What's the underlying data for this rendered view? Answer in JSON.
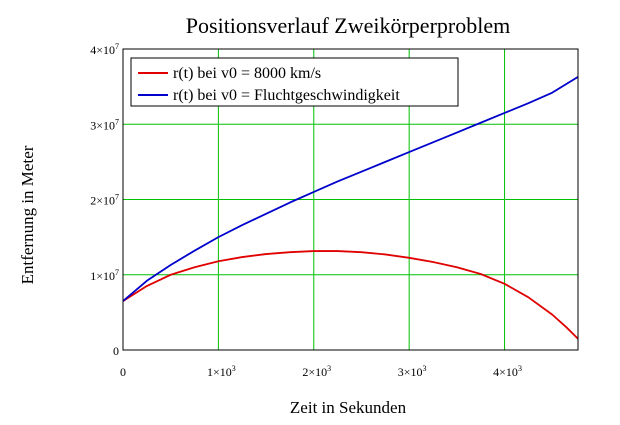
{
  "chart_data": {
    "type": "line",
    "title": "Positionsverlauf Zweikörperproblem",
    "xlabel": "Zeit in Sekunden",
    "ylabel": "Entfernung in Meter",
    "xlim": [
      0,
      4770
    ],
    "ylim": [
      0,
      40000000
    ],
    "grid": true,
    "grid_color": "#00c000",
    "legend_position": "top-left",
    "x_ticks": [
      {
        "value": 0,
        "mantissa": "0",
        "exponent": ""
      },
      {
        "value": 1000,
        "mantissa": "1×10",
        "exponent": "3"
      },
      {
        "value": 2000,
        "mantissa": "2×10",
        "exponent": "3"
      },
      {
        "value": 3000,
        "mantissa": "3×10",
        "exponent": "3"
      },
      {
        "value": 4000,
        "mantissa": "4×10",
        "exponent": "3"
      }
    ],
    "y_ticks": [
      {
        "value": 0,
        "mantissa": "0",
        "exponent": ""
      },
      {
        "value": 10000000,
        "mantissa": "1×10",
        "exponent": "7"
      },
      {
        "value": 20000000,
        "mantissa": "2×10",
        "exponent": "7"
      },
      {
        "value": 30000000,
        "mantissa": "3×10",
        "exponent": "7"
      },
      {
        "value": 40000000,
        "mantissa": "4×10",
        "exponent": "7"
      }
    ],
    "series": [
      {
        "name": "r(t) bei v0 = 8000 km/s",
        "color": "#e00000",
        "x": [
          0,
          250,
          500,
          750,
          1000,
          1250,
          1500,
          1750,
          2000,
          2250,
          2500,
          2750,
          3000,
          3250,
          3500,
          3750,
          4000,
          4250,
          4500,
          4650,
          4770
        ],
        "y": [
          6500000,
          8500000,
          10000000,
          11000000,
          11800000,
          12350000,
          12750000,
          13000000,
          13150000,
          13150000,
          13000000,
          12700000,
          12250000,
          11700000,
          11000000,
          10100000,
          8800000,
          7000000,
          4700000,
          3000000,
          1500000
        ]
      },
      {
        "name": "r(t) bei v0 = Fluchtgeschwindigkeit",
        "color": "#0000cc",
        "x": [
          0,
          250,
          500,
          750,
          1000,
          1250,
          1500,
          1750,
          2000,
          2250,
          2500,
          2750,
          3000,
          3250,
          3500,
          3750,
          4000,
          4250,
          4500,
          4770
        ],
        "y": [
          6500000,
          9200000,
          11300000,
          13200000,
          15000000,
          16600000,
          18100000,
          19600000,
          21000000,
          22400000,
          23700000,
          25000000,
          26300000,
          27600000,
          28900000,
          30200000,
          31500000,
          32800000,
          34200000,
          36300000
        ]
      }
    ]
  }
}
